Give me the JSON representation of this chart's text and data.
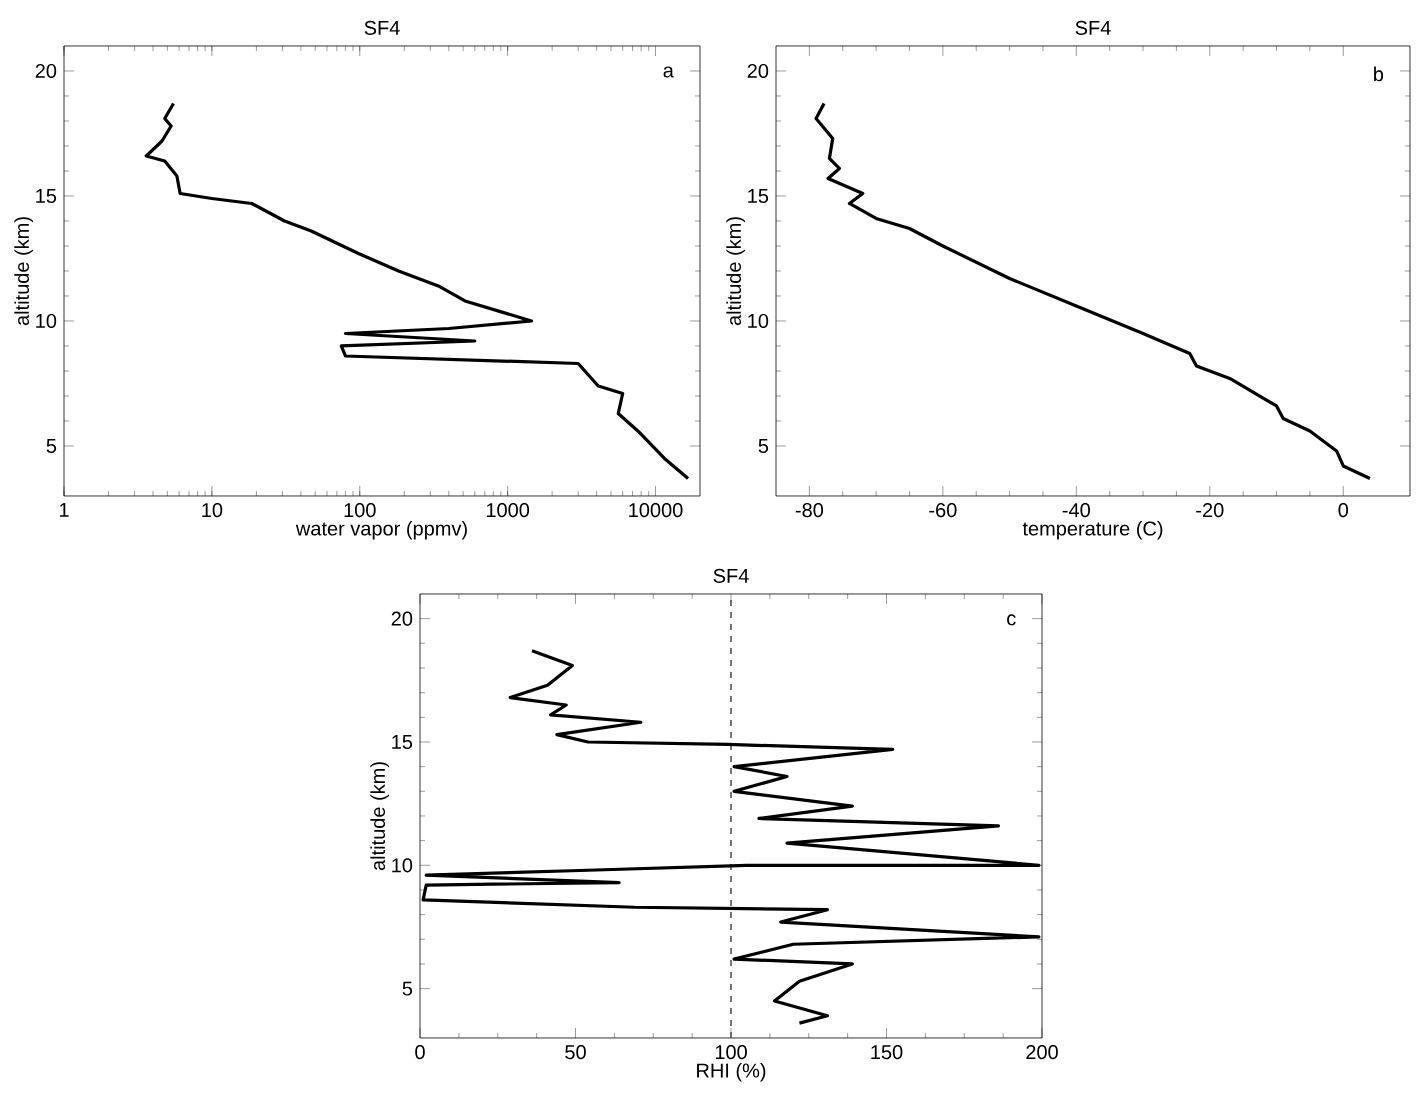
{
  "chart_data": [
    {
      "type": "line",
      "title": "SF4",
      "xlabel": "water vapor (ppmv)",
      "ylabel": "altitude (km)",
      "annotations": [
        "a"
      ],
      "log": "x",
      "color": "#000000",
      "line_style": "solid",
      "xlim": [
        1,
        20000
      ],
      "ylim": [
        3,
        21
      ],
      "xticks": [
        1,
        10,
        100,
        1000,
        10000
      ],
      "yticks": [
        5,
        10,
        15,
        20
      ],
      "x": [
        5.5,
        4.8,
        5.3,
        4.6,
        3.6,
        4.8,
        5.8,
        6.1,
        10,
        18.6,
        31,
        47,
        98,
        183,
        340,
        515,
        1450,
        400,
        80,
        600,
        75,
        80,
        3000,
        4100,
        6000,
        5600,
        7600,
        11500,
        16600
      ],
      "values": [
        18.7,
        18.1,
        17.8,
        17.2,
        16.6,
        16.4,
        15.8,
        15.1,
        14.9,
        14.7,
        14.0,
        13.6,
        12.7,
        12.0,
        11.4,
        10.8,
        10.0,
        9.7,
        9.5,
        9.2,
        9.0,
        8.6,
        8.3,
        7.4,
        7.1,
        6.3,
        5.6,
        4.5,
        3.7
      ]
    },
    {
      "type": "line",
      "title": "SF4",
      "xlabel": "temperature (C)",
      "ylabel": "altitude (km)",
      "annotations": [
        "b"
      ],
      "color": "#000000",
      "line_style": "solid",
      "xlim": [
        -85,
        10
      ],
      "ylim": [
        3,
        21
      ],
      "xticks": [
        -80,
        -60,
        -40,
        -20,
        0
      ],
      "yticks": [
        5,
        10,
        15,
        20
      ],
      "x": [
        -77.8,
        -79,
        -76.5,
        -77,
        -75.5,
        -77.2,
        -72,
        -74,
        -70,
        -65,
        -60,
        -50,
        -40,
        -30,
        -23,
        -22,
        -17,
        -10,
        -9,
        -5,
        -1,
        0,
        4
      ],
      "values": [
        18.7,
        18.1,
        17.3,
        16.5,
        16.1,
        15.7,
        15.1,
        14.7,
        14.1,
        13.7,
        13.0,
        11.7,
        10.6,
        9.5,
        8.7,
        8.2,
        7.7,
        6.6,
        6.1,
        5.6,
        4.8,
        4.2,
        3.7
      ]
    },
    {
      "type": "line",
      "title": "SF4",
      "xlabel": "RHI (%)",
      "ylabel": "altitude (km)",
      "annotations": [
        "c"
      ],
      "color": "#000000",
      "line_style": "solid",
      "xlim": [
        0,
        200
      ],
      "ylim": [
        3,
        21
      ],
      "xticks": [
        0,
        50,
        100,
        150,
        200
      ],
      "yticks": [
        5,
        10,
        15,
        20
      ],
      "ref_lines": [
        {
          "axis": "x",
          "value": 100,
          "line_style": "dashed",
          "color": "#555555"
        }
      ],
      "x": [
        36,
        49,
        41,
        29,
        47,
        42,
        71,
        44,
        54,
        99,
        152,
        101,
        118,
        101,
        139,
        109,
        186,
        118,
        199,
        105,
        54,
        2,
        64,
        2,
        1,
        69,
        131,
        116,
        199,
        120,
        101,
        139,
        122,
        114,
        131,
        122
      ],
      "values": [
        18.7,
        18.1,
        17.3,
        16.8,
        16.5,
        16.1,
        15.8,
        15.3,
        15.0,
        14.9,
        14.7,
        14.0,
        13.6,
        13.0,
        12.4,
        11.9,
        11.6,
        10.9,
        10.0,
        10.0,
        9.8,
        9.6,
        9.3,
        9.2,
        8.6,
        8.3,
        8.2,
        7.7,
        7.1,
        6.8,
        6.2,
        6.0,
        5.3,
        4.5,
        3.9,
        3.6
      ]
    }
  ]
}
